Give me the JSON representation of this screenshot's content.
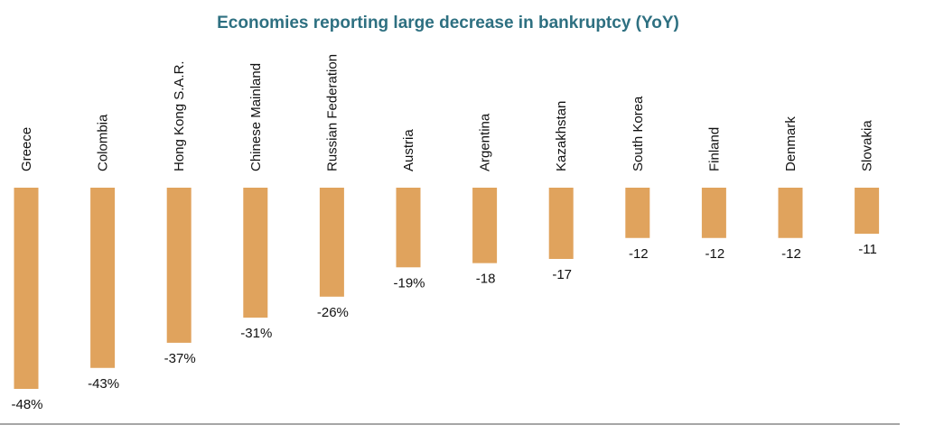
{
  "colors": {
    "bar": "#e0a35d",
    "title": "#2e7081",
    "baseline": "#a6a6a6"
  },
  "chart_data": {
    "type": "bar",
    "title": "Economies reporting large decrease in bankruptcy (YoY)",
    "xlabel": "",
    "ylabel": "",
    "ylim": [
      -50,
      0
    ],
    "grid": false,
    "categories": [
      "Greece",
      "Colombia",
      "Hong Kong S.A.R.",
      "Chinese Mainland",
      "Russian Federation",
      "Austria",
      "Argentina",
      "Kazakhstan",
      "South Korea",
      "Finland",
      "Denmark",
      "Slovakia"
    ],
    "values": [
      -48,
      -43,
      -37,
      -31,
      -26,
      -19,
      -18,
      -17,
      -12,
      -12,
      -12,
      -11
    ],
    "data_labels": [
      "-48%",
      "-43%",
      "-37%",
      "-31%",
      "-26%",
      "-19%",
      "-18",
      "-17",
      "-12",
      "-12",
      "-12",
      "-11"
    ]
  }
}
